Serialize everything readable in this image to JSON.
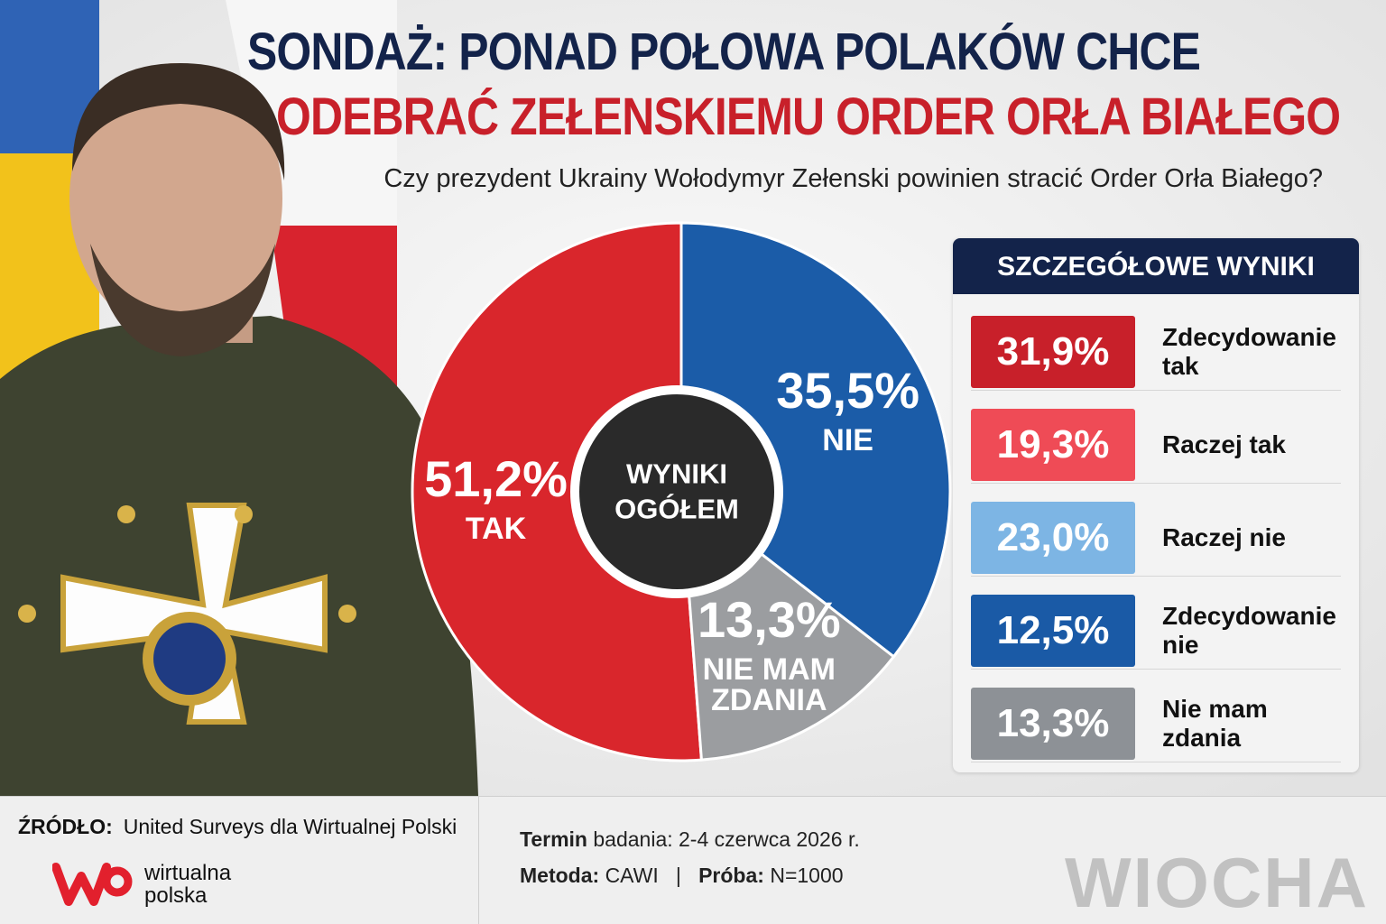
{
  "chart_data": {
    "type": "pie",
    "title": [
      "SONDAŻ: PONAD POŁOWA POLAKÓW CHCE",
      "ODEBRAĆ ZEŁENSKIEMU ORDER ORŁA BIAŁEGO"
    ],
    "subtitle": "Czy prezydent Ukrainy Wołodymyr Zełenski powinien stracić Order Orła Białego?",
    "center_label": "WYNIKI OGÓŁEM",
    "categories": [
      "TAK",
      "NIE MAM ZDANIA",
      "NIE"
    ],
    "values": [
      51.2,
      13.3,
      35.5
    ],
    "value_labels": [
      "51,2%",
      "13,3%",
      "35,5%"
    ],
    "colors": [
      "#d9262c",
      "#9b9da0",
      "#1b5ca8"
    ],
    "start_angle": 0,
    "counterclock": true
  },
  "details": {
    "title": "SZCZEGÓŁOWE WYNIKI",
    "rows": [
      {
        "value_label": "31,9%",
        "label": "Zdecydowanie tak",
        "color": "#c8202a"
      },
      {
        "value_label": "19,3%",
        "label": "Raczej tak",
        "color": "#ef4b56"
      },
      {
        "value_label": "23,0%",
        "label": "Raczej nie",
        "color": "#7db5e4"
      },
      {
        "value_label": "12,5%",
        "label": "Zdecydowanie nie",
        "color": "#1a5aa6"
      },
      {
        "value_label": "13,3%",
        "label": "Nie mam zdania",
        "color": "#8d9196"
      }
    ]
  },
  "footer": {
    "source_label": "ŹRÓDŁO:",
    "source_text": "United Surveys dla Wirtualnej Polski",
    "publisher": [
      "wirtualna",
      "polska"
    ],
    "term_label": "Termin",
    "term_text": "badania: 2-4 czerwca 2026 r.",
    "method_label": "Metoda:",
    "method_text": "CAWI",
    "sample_label": "Próba:",
    "sample_text": "N=1000",
    "watermark": "WIOCHA"
  }
}
